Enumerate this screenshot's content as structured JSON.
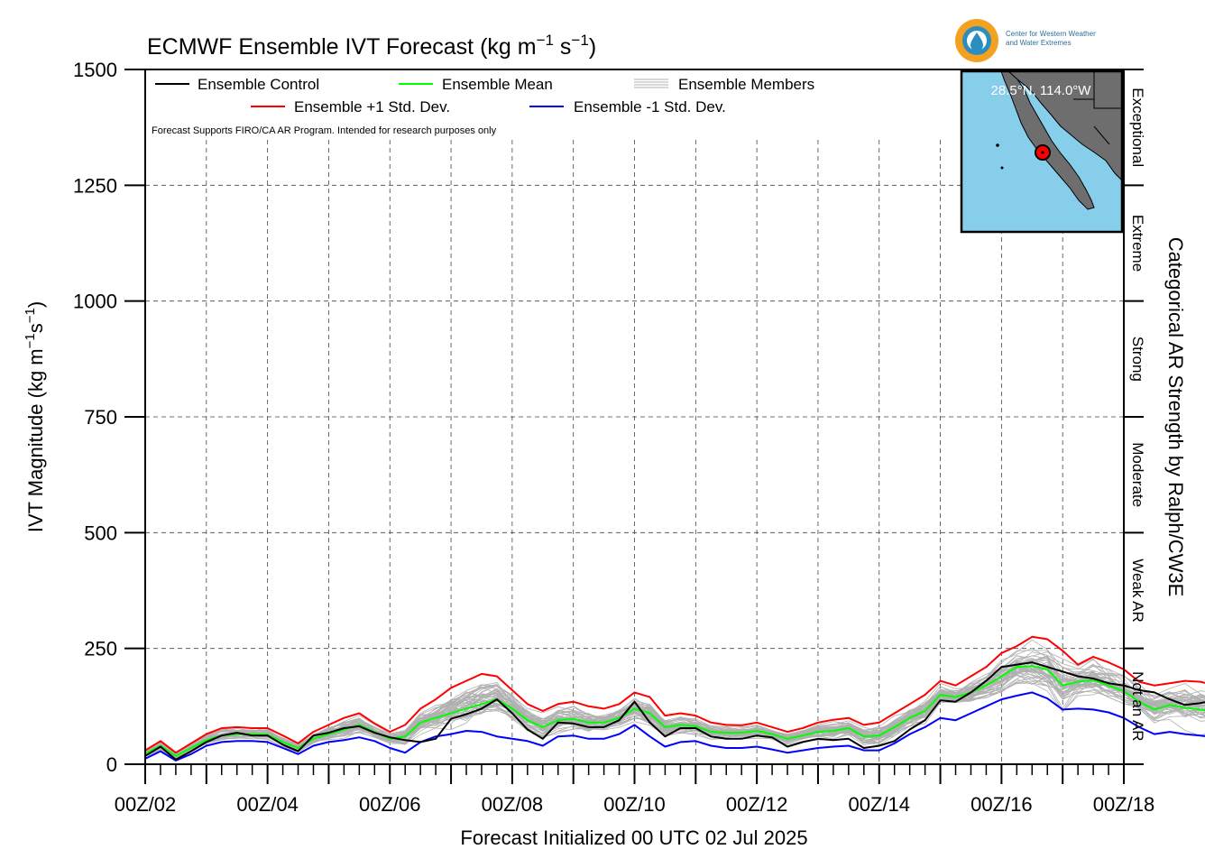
{
  "chart_data": {
    "type": "line",
    "title": "ECMWF Ensemble IVT Forecast (kg m",
    "title_sup1": "−1",
    "title_mid": " s",
    "title_sup2": "−1",
    "title_end": ")",
    "xlabel": "Forecast Initialized 00 UTC 02 Jul 2025",
    "ylabel_parts": [
      "IVT Magnitude (kg m",
      "−1",
      "s",
      "−1",
      ")"
    ],
    "right_axis_title": "Categorical AR Strength by Ralph/CW3E",
    "right_categories": [
      "Exceptional",
      "Extreme",
      "Strong",
      "Moderate",
      "Weak AR",
      "Not an AR"
    ],
    "ylim": [
      0,
      1500
    ],
    "yticks": [
      0,
      250,
      500,
      750,
      1000,
      1250,
      1500
    ],
    "xlim_days": [
      2,
      18
    ],
    "xtick_labels": [
      "00Z/02",
      "00Z/04",
      "00Z/06",
      "00Z/08",
      "00Z/10",
      "00Z/12",
      "00Z/14",
      "00Z/16",
      "00Z/18"
    ],
    "x_step_hours": 6,
    "note": "Forecast Supports FIRO/CA AR Program. Intended for research purposes only",
    "grid": true,
    "legend_position": "top-left",
    "legend": [
      {
        "label": "Ensemble Control",
        "color": "#000000"
      },
      {
        "label": "Ensemble Mean",
        "color": "#00ff00"
      },
      {
        "label": "Ensemble Members",
        "color": "#b0b0b0"
      },
      {
        "label": "Ensemble +1 Std. Dev.",
        "color": "#ff0000"
      },
      {
        "label": "Ensemble -1 Std. Dev.",
        "color": "#0000ff"
      }
    ],
    "series": [
      {
        "name": "Ensemble Control",
        "color": "#000000",
        "values": [
          18,
          38,
          10,
          28,
          48,
          62,
          68,
          62,
          62,
          42,
          28,
          62,
          68,
          78,
          82,
          68,
          58,
          52,
          48,
          55,
          98,
          108,
          120,
          140,
          110,
          75,
          55,
          90,
          88,
          80,
          80,
          95,
          135,
          90,
          60,
          78,
          78,
          60,
          55,
          55,
          62,
          58,
          38,
          48,
          55,
          52,
          55,
          35,
          40,
          50,
          75,
          95,
          138,
          135,
          155,
          180,
          210,
          215,
          220,
          210,
          200,
          190,
          185,
          175,
          170,
          160,
          155,
          140,
          128,
          132,
          138,
          130,
          122,
          35,
          42,
          48,
          40,
          60,
          58,
          92,
          52,
          48,
          48,
          65,
          90,
          85,
          80,
          95,
          92,
          98,
          100,
          100,
          80,
          98,
          108,
          118,
          128,
          135,
          108,
          85,
          80,
          110,
          120,
          100,
          130,
          145,
          128
        ]
      },
      {
        "name": "Ensemble Mean",
        "color": "#00ff00",
        "values": [
          23,
          40,
          18,
          35,
          52,
          62,
          65,
          65,
          64,
          48,
          35,
          55,
          65,
          75,
          85,
          70,
          55,
          60,
          90,
          100,
          110,
          120,
          130,
          140,
          120,
          95,
          80,
          95,
          98,
          90,
          90,
          100,
          120,
          110,
          80,
          85,
          82,
          70,
          68,
          68,
          72,
          65,
          55,
          62,
          70,
          72,
          78,
          60,
          62,
          80,
          100,
          115,
          150,
          145,
          155,
          170,
          190,
          210,
          212,
          205,
          170,
          178,
          182,
          170,
          158,
          135,
          118,
          128,
          122,
          118,
          112,
          105,
          100,
          76,
          80,
          82,
          78,
          92,
          88,
          95,
          85,
          75,
          75,
          80,
          85,
          90,
          95,
          90,
          95,
          98,
          100,
          105,
          75,
          95,
          100,
          102,
          100,
          98,
          100,
          98,
          85,
          95,
          100,
          95,
          105,
          120,
          85
        ]
      },
      {
        "name": "Ensemble +1 Std. Dev.",
        "color": "#ff0000",
        "values": [
          30,
          50,
          25,
          45,
          65,
          78,
          80,
          78,
          78,
          62,
          45,
          70,
          85,
          100,
          110,
          88,
          70,
          85,
          120,
          140,
          165,
          180,
          195,
          190,
          160,
          130,
          115,
          130,
          135,
          125,
          120,
          130,
          155,
          145,
          105,
          110,
          105,
          90,
          85,
          84,
          90,
          80,
          70,
          78,
          90,
          96,
          100,
          85,
          90,
          110,
          130,
          150,
          180,
          170,
          190,
          210,
          240,
          255,
          275,
          270,
          245,
          215,
          232,
          220,
          205,
          178,
          170,
          175,
          180,
          178,
          170,
          160,
          150,
          110,
          125,
          128,
          122,
          140,
          130,
          135,
          125,
          115,
          115,
          128,
          135,
          140,
          145,
          135,
          138,
          145,
          148,
          150,
          125,
          140,
          145,
          145,
          142,
          140,
          145,
          142,
          125,
          140,
          145,
          140,
          155,
          175,
          135
        ]
      },
      {
        "name": "Ensemble -1 Std. Dev.",
        "color": "#0000ff",
        "values": [
          12,
          28,
          8,
          22,
          40,
          48,
          50,
          50,
          48,
          35,
          22,
          40,
          48,
          52,
          58,
          50,
          35,
          25,
          48,
          60,
          65,
          72,
          70,
          60,
          55,
          50,
          40,
          60,
          62,
          55,
          55,
          65,
          85,
          60,
          38,
          48,
          50,
          40,
          35,
          35,
          38,
          32,
          25,
          30,
          35,
          38,
          40,
          30,
          30,
          45,
          65,
          80,
          100,
          95,
          110,
          125,
          140,
          148,
          155,
          142,
          118,
          120,
          118,
          112,
          100,
          80,
          65,
          70,
          65,
          62,
          58,
          55,
          50,
          40,
          42,
          43,
          40,
          48,
          42,
          48,
          42,
          35,
          35,
          38,
          40,
          45,
          48,
          42,
          45,
          48,
          50,
          52,
          30,
          40,
          45,
          48,
          45,
          42,
          45,
          44,
          35,
          42,
          48,
          44,
          48,
          55,
          45
        ]
      }
    ],
    "members_count": 50,
    "map_inset": {
      "label": "28.5°N, 114.0°W",
      "ocean_color": "#87ceeb",
      "land_color": "#6e6e6e"
    },
    "logo_text": [
      "Center for Western Weather",
      "and Water Extremes"
    ]
  }
}
